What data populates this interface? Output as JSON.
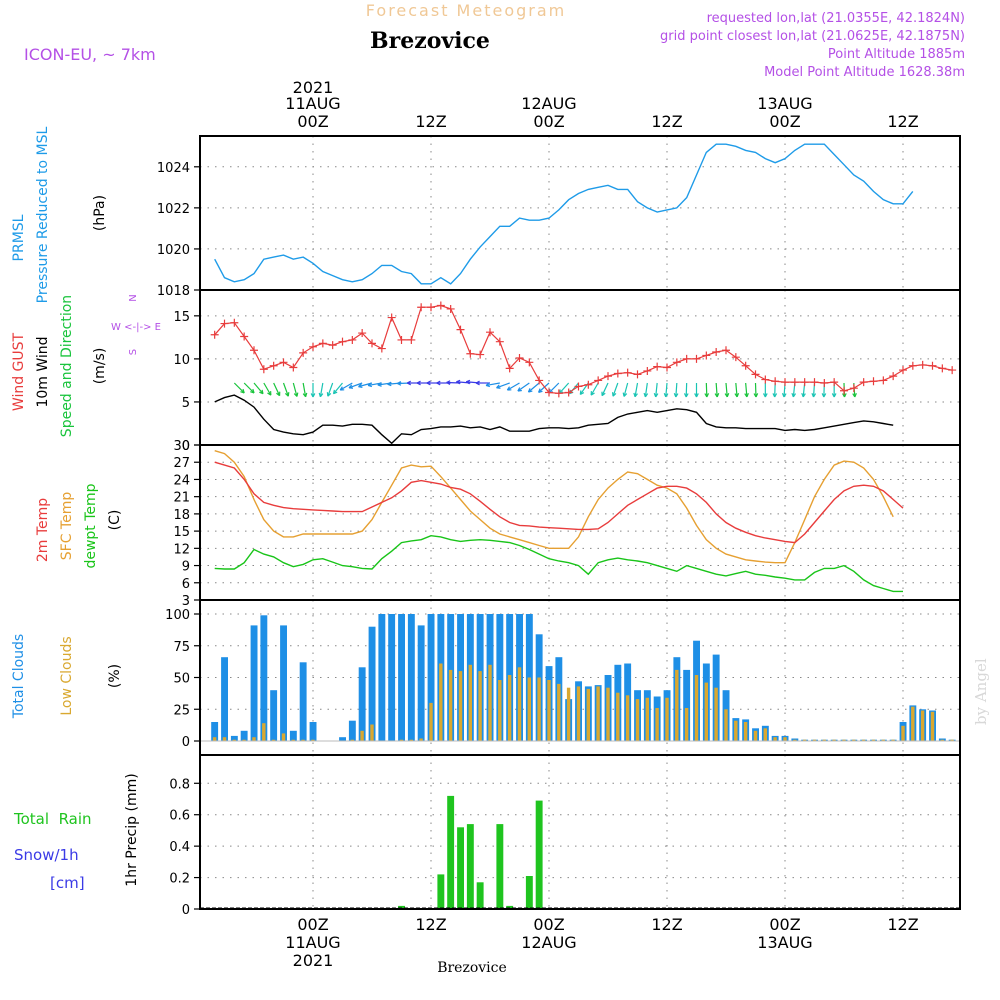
{
  "header": {
    "product_title": "Forecast Meteogram",
    "location": "Brezovice",
    "model": "ICON-EU, ~ 7km",
    "requested": "requested lon,lat (21.0355E, 42.1824N)",
    "gridpoint": "grid point closest lon,lat (21.0625E, 42.1875N)",
    "point_altitude": "Point Altitude 1885m",
    "model_altitude": "Model Point Altitude 1628.38m",
    "watermark": "by Angel"
  },
  "time_axis": {
    "year": "2021",
    "top_labels": [
      {
        "l1": "11AUG",
        "l2": "00Z"
      },
      {
        "l1": "",
        "l2": "12Z"
      },
      {
        "l1": "12AUG",
        "l2": "00Z"
      },
      {
        "l1": "",
        "l2": "12Z"
      },
      {
        "l1": "13AUG",
        "l2": "00Z"
      },
      {
        "l1": "",
        "l2": "12Z"
      }
    ],
    "bottom_labels": [
      {
        "l1": "00Z",
        "l2": "11AUG"
      },
      {
        "l1": "12Z",
        "l2": ""
      },
      {
        "l1": "00Z",
        "l2": "12AUG"
      },
      {
        "l1": "12Z",
        "l2": ""
      },
      {
        "l1": "00Z",
        "l2": "13AUG"
      },
      {
        "l1": "12Z",
        "l2": ""
      }
    ],
    "bottom_title": "Brezovice"
  },
  "colors": {
    "pressure": "#1e9be8",
    "gust": "#e83c3c",
    "wind": "#000000",
    "winddir": "#19c43c",
    "temp2m": "#e83c3c",
    "sfctemp": "#e6a032",
    "dewpt": "#19c419",
    "totalcloud": "#1e8fe6",
    "lowcloud": "#d9a830",
    "rain": "#1fc41f",
    "snow": "#3a3ae6",
    "header_purple": "#b450e6",
    "title_orange": "#f0c896"
  },
  "chart_data": [
    {
      "type": "line",
      "panel": "pressure",
      "ylabel_lines": [
        "PRMSL",
        "Pressure Reduced to MSL",
        "(hPa)"
      ],
      "ylim": [
        1018,
        1025.5
      ],
      "yticks": [
        1018,
        1020,
        1022,
        1024
      ],
      "x_hours_start": -10,
      "series": [
        {
          "name": "PRMSL",
          "values": [
            1019.5,
            1018.6,
            1018.4,
            1018.5,
            1018.8,
            1019.5,
            1019.6,
            1019.7,
            1019.5,
            1019.6,
            1019.3,
            1018.9,
            1018.7,
            1018.5,
            1018.4,
            1018.5,
            1018.8,
            1019.2,
            1019.2,
            1018.9,
            1018.8,
            1018.3,
            1018.3,
            1018.6,
            1018.3,
            1018.8,
            1019.5,
            1020.1,
            1020.6,
            1021.1,
            1021.1,
            1021.5,
            1021.4,
            1021.4,
            1021.5,
            1021.9,
            1022.4,
            1022.7,
            1022.9,
            1023.0,
            1023.1,
            1022.9,
            1022.9,
            1022.3,
            1022.0,
            1021.8,
            1021.9,
            1022.0,
            1022.5,
            1023.6,
            1024.7,
            1025.1,
            1025.1,
            1025.0,
            1024.8,
            1024.7,
            1024.4,
            1024.2,
            1024.4,
            1024.8,
            1025.1,
            1025.1,
            1025.1,
            1024.6,
            1024.1,
            1023.6,
            1023.3,
            1022.8,
            1022.4,
            1022.2,
            1022.2,
            1022.8
          ]
        }
      ]
    },
    {
      "type": "line",
      "panel": "wind",
      "ylabel_lines": [
        "Wind GUST",
        "10m Wind",
        "Speed and Direction",
        "(m/s)"
      ],
      "ylim": [
        0,
        18
      ],
      "yticks": [
        0,
        5,
        10,
        15
      ],
      "compass": [
        "N",
        "W <-|-> E",
        "S"
      ],
      "x_hours_start": -10,
      "series": [
        {
          "name": "Wind GUST",
          "values": [
            12.8,
            14.1,
            14.2,
            12.6,
            11.0,
            8.8,
            9.2,
            9.6,
            9.0,
            10.7,
            11.4,
            11.8,
            11.6,
            12.0,
            12.2,
            13.0,
            11.8,
            11.2,
            14.8,
            12.2,
            12.2,
            16.0,
            16.0,
            16.2,
            15.8,
            13.4,
            10.6,
            10.5,
            13.1,
            12.0,
            8.9,
            10.1,
            9.6,
            7.5,
            6.1,
            6.0,
            6.1,
            6.8,
            7.0,
            7.5,
            8.0,
            8.3,
            8.4,
            8.2,
            8.6,
            9.1,
            9.0,
            9.6,
            10.0,
            10.0,
            10.4,
            10.8,
            11.0,
            10.2,
            9.2,
            8.2,
            7.6,
            7.4,
            7.3,
            7.3,
            7.3,
            7.3,
            7.2,
            7.3,
            6.3,
            6.6,
            7.3,
            7.4,
            7.5,
            8.0,
            8.7,
            9.2,
            9.3,
            9.2,
            8.9,
            8.7
          ]
        },
        {
          "name": "10m Wind",
          "values": [
            5.0,
            5.5,
            5.8,
            5.2,
            4.4,
            3.0,
            1.8,
            1.5,
            1.3,
            1.2,
            1.5,
            2.3,
            2.3,
            2.2,
            2.4,
            2.4,
            2.3,
            1.2,
            0.2,
            1.3,
            1.2,
            1.8,
            1.9,
            2.1,
            2.1,
            2.2,
            2.0,
            2.1,
            1.8,
            2.1,
            1.6,
            1.6,
            1.6,
            1.9,
            2.0,
            2.0,
            1.9,
            2.0,
            2.3,
            2.4,
            2.5,
            3.2,
            3.6,
            3.8,
            4.0,
            3.8,
            4.0,
            4.2,
            4.1,
            3.8,
            2.5,
            2.1,
            2.0,
            2.0,
            1.9,
            1.9,
            1.9,
            1.9,
            1.7,
            1.8,
            1.7,
            1.8,
            2.0,
            2.2,
            2.4,
            2.6,
            2.8,
            2.7,
            2.5,
            2.3
          ]
        }
      ],
      "direction_arrows_deg_to": [
        135,
        135,
        140,
        150,
        155,
        160,
        165,
        170,
        180,
        190,
        200,
        220,
        240,
        250,
        255,
        260,
        262,
        265,
        268,
        270,
        270,
        270,
        270,
        272,
        275,
        275,
        270,
        260,
        250,
        240,
        235,
        230,
        228,
        225,
        222,
        220,
        215,
        210,
        205,
        200,
        195,
        190,
        188,
        186,
        185,
        184,
        182,
        180,
        178,
        176,
        175,
        175,
        175,
        178,
        180,
        182,
        184,
        186,
        186,
        184,
        182,
        180,
        178,
        176
      ]
    },
    {
      "type": "line",
      "panel": "temperature",
      "ylabel_lines": [
        "2m Temp",
        "SFC Temp",
        "dewpt Temp",
        "(C)"
      ],
      "ylim": [
        3,
        30
      ],
      "yticks": [
        3,
        6,
        9,
        12,
        15,
        18,
        21,
        24,
        27,
        30
      ],
      "x_hours_start": -10,
      "series": [
        {
          "name": "2m Temp",
          "values": [
            27.0,
            26.5,
            26.0,
            24.0,
            21.5,
            20.0,
            19.5,
            19.1,
            18.9,
            18.8,
            18.7,
            18.6,
            18.5,
            18.4,
            18.4,
            18.4,
            19.2,
            20.0,
            20.8,
            22.0,
            23.5,
            23.8,
            23.5,
            23.2,
            22.6,
            22.3,
            21.5,
            20.2,
            18.8,
            17.5,
            16.5,
            16.0,
            15.9,
            15.7,
            15.6,
            15.5,
            15.4,
            15.3,
            15.3,
            15.4,
            16.5,
            18.0,
            19.5,
            20.5,
            21.5,
            22.5,
            22.8,
            22.8,
            22.5,
            21.5,
            20.0,
            18.0,
            16.5,
            15.5,
            14.8,
            14.2,
            13.8,
            13.5,
            13.2,
            13.0,
            14.5,
            16.5,
            18.5,
            20.5,
            22.0,
            22.8,
            23.0,
            22.8,
            22.0,
            20.5,
            19.0
          ]
        },
        {
          "name": "SFC Temp",
          "values": [
            29.0,
            28.5,
            27.0,
            24.5,
            20.5,
            17.0,
            15.0,
            14.0,
            14.0,
            14.5,
            14.5,
            14.5,
            14.5,
            14.5,
            14.5,
            15.0,
            17.0,
            20.0,
            23.0,
            26.0,
            26.5,
            26.2,
            26.3,
            24.5,
            22.5,
            20.5,
            18.5,
            17.0,
            15.5,
            14.5,
            14.0,
            13.5,
            13.0,
            12.5,
            12.0,
            12.0,
            12.0,
            14.0,
            17.5,
            20.5,
            22.5,
            24.0,
            25.3,
            25.0,
            24.0,
            23.0,
            22.5,
            21.5,
            19.0,
            16.0,
            13.5,
            12.0,
            11.0,
            10.5,
            10.0,
            9.8,
            9.6,
            9.5,
            9.5,
            13.0,
            17.0,
            21.0,
            24.0,
            26.5,
            27.2,
            27.0,
            26.0,
            24.0,
            21.0,
            17.5
          ]
        },
        {
          "name": "dewpt Temp",
          "values": [
            8.5,
            8.4,
            8.4,
            9.5,
            11.8,
            11.0,
            10.5,
            9.5,
            8.8,
            9.2,
            10.0,
            10.2,
            9.6,
            9.0,
            8.8,
            8.5,
            8.4,
            10.2,
            11.5,
            13.0,
            13.3,
            13.5,
            14.2,
            14.0,
            13.5,
            13.2,
            13.4,
            13.5,
            13.4,
            13.2,
            13.0,
            12.5,
            11.8,
            11.0,
            10.2,
            9.8,
            9.5,
            9.0,
            7.5,
            9.5,
            10.0,
            10.3,
            10.0,
            9.8,
            9.5,
            9.0,
            8.5,
            8.0,
            9.0,
            8.5,
            8.0,
            7.5,
            7.2,
            7.6,
            8.0,
            7.5,
            7.3,
            7.0,
            6.8,
            6.5,
            6.5,
            7.8,
            8.5,
            8.5,
            9.0,
            8.0,
            6.5,
            5.5,
            5.0,
            4.5,
            4.5
          ]
        }
      ]
    },
    {
      "type": "bar",
      "panel": "clouds",
      "ylabel_lines": [
        "Total Clouds",
        "Low Clouds",
        "(%)"
      ],
      "ylim": [
        0,
        100
      ],
      "yticks": [
        0,
        25,
        50,
        75,
        100
      ],
      "x_hours_start": -10,
      "series": [
        {
          "name": "Total Clouds",
          "values": [
            15,
            66,
            4,
            8,
            91,
            99,
            40,
            91,
            8,
            62,
            15,
            0,
            0,
            3,
            16,
            58,
            90,
            100,
            100,
            100,
            100,
            91,
            100,
            100,
            100,
            100,
            100,
            100,
            100,
            100,
            100,
            100,
            100,
            84,
            59,
            66,
            33,
            47,
            43,
            44,
            52,
            60,
            61,
            40,
            40,
            35,
            40,
            66,
            56,
            79,
            61,
            68,
            40,
            18,
            17,
            10,
            12,
            4,
            4,
            2,
            1,
            1,
            1,
            1,
            1,
            1,
            1,
            1,
            1,
            1,
            15,
            28,
            25,
            24,
            2,
            1,
            1,
            1
          ]
        },
        {
          "name": "Low Clouds",
          "values": [
            3,
            3,
            1,
            1,
            3,
            14,
            1,
            6,
            1,
            1,
            1,
            0,
            0,
            0,
            1,
            8,
            13,
            0,
            0,
            1,
            1,
            2,
            30,
            61,
            56,
            55,
            60,
            55,
            60,
            48,
            52,
            58,
            50,
            50,
            48,
            45,
            42,
            43,
            41,
            43,
            42,
            38,
            36,
            33,
            34,
            26,
            34,
            56,
            26,
            52,
            46,
            42,
            25,
            16,
            15,
            8,
            10,
            3,
            3,
            1,
            1,
            1,
            1,
            1,
            1,
            1,
            1,
            1,
            1,
            1,
            12,
            27,
            24,
            23,
            1,
            1,
            1,
            1
          ]
        }
      ]
    },
    {
      "type": "bar",
      "panel": "precip",
      "ylabel_lines": [
        "1hr Precip (mm)"
      ],
      "legend": {
        "rain": "Total  Rain",
        "snow": "Snow/1h",
        "snow_unit": "[cm]"
      },
      "ylim": [
        0,
        0.98
      ],
      "yticks": [
        0,
        0.2,
        0.4,
        0.6,
        0.8
      ],
      "ytick_labels": [
        "0",
        "0.2",
        "0.4",
        "0.6",
        "0.8"
      ],
      "x_hours_start": -10,
      "series": [
        {
          "name": "Total Rain",
          "values": [
            0,
            0,
            0,
            0,
            0,
            0,
            0,
            0,
            0,
            0,
            0,
            0,
            0,
            0,
            0,
            0,
            0,
            0,
            0,
            0.02,
            0,
            0,
            0,
            0.22,
            0.72,
            0.52,
            0.54,
            0.17,
            0,
            0.54,
            0.02,
            0,
            0.21,
            0.69,
            0,
            0,
            0,
            0,
            0,
            0,
            0,
            0,
            0,
            0,
            0,
            0,
            0,
            0,
            0,
            0,
            0,
            0,
            0,
            0,
            0,
            0,
            0,
            0,
            0,
            0,
            0,
            0,
            0,
            0,
            0,
            0,
            0,
            0,
            0,
            0,
            0,
            0,
            0,
            0,
            0,
            0,
            0,
            0
          ]
        }
      ]
    }
  ]
}
